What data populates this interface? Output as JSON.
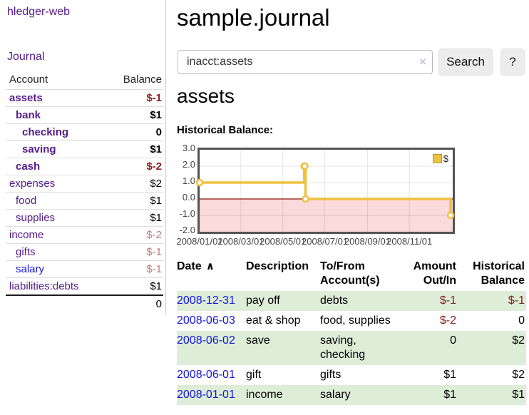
{
  "app": {
    "brand": "hledger-web",
    "nav_journal": "Journal"
  },
  "sidebar": {
    "col_account": "Account",
    "col_balance": "Balance",
    "accounts": [
      {
        "name": "assets",
        "balance": "$-1",
        "indent": 1,
        "bold": true,
        "unvisited": false
      },
      {
        "name": "bank",
        "balance": "$1",
        "indent": 2,
        "bold": true,
        "unvisited": false
      },
      {
        "name": "checking",
        "balance": "0",
        "indent": 3,
        "bold": true,
        "unvisited": false
      },
      {
        "name": "saving",
        "balance": "$1",
        "indent": 3,
        "bold": true,
        "unvisited": false
      },
      {
        "name": "cash",
        "balance": "$-2",
        "indent": 2,
        "bold": true,
        "unvisited": false
      },
      {
        "name": "expenses",
        "balance": "$2",
        "indent": 1,
        "bold": false,
        "unvisited": false
      },
      {
        "name": "food",
        "balance": "$1",
        "indent": 2,
        "bold": false,
        "unvisited": false
      },
      {
        "name": "supplies",
        "balance": "$1",
        "indent": 2,
        "bold": false,
        "unvisited": false
      },
      {
        "name": "income",
        "balance": "$-2",
        "indent": 1,
        "bold": false,
        "unvisited": false
      },
      {
        "name": "gifts",
        "balance": "$-1",
        "indent": 2,
        "bold": false,
        "unvisited": false
      },
      {
        "name": "salary",
        "balance": "$-1",
        "indent": 2,
        "bold": false,
        "unvisited": true
      },
      {
        "name": "liabilities:debts",
        "balance": "$1",
        "indent": 1,
        "bold": false,
        "unvisited": false
      }
    ],
    "total": "0"
  },
  "header": {
    "title": "sample.journal"
  },
  "search": {
    "value": "inacct:assets",
    "clear_icon": "×",
    "button_label": "Search",
    "help_label": "?"
  },
  "account_page": {
    "title": "assets",
    "chart_label": "Historical Balance:"
  },
  "chart_data": {
    "type": "line",
    "step": true,
    "title": "Historical Balance",
    "x_start": "2008-01-01",
    "x_end": "2009-01-03",
    "ylim": [
      -2,
      3
    ],
    "ytick_values": [
      3,
      2,
      1,
      0,
      -1,
      -2
    ],
    "ytick_labels": [
      "3.0",
      "2.0",
      "1.0",
      "0.0",
      "-1.0",
      "-2.0"
    ],
    "xtick_values": [
      "2008-01-01",
      "2008-03-01",
      "2008-05-01",
      "2008-07-01",
      "2008-09-01",
      "2008-11-01"
    ],
    "xtick_labels": [
      "2008/01/01",
      "2008/03/01",
      "2008/05/01",
      "2008/07/01",
      "2008/09/01",
      "2008/11/01"
    ],
    "grid": true,
    "legend_position": "top-right",
    "series": [
      {
        "name": "$",
        "color": "#edc240",
        "points": [
          {
            "x": "2008-01-01",
            "y": 1
          },
          {
            "x": "2008-06-01",
            "y": 2
          },
          {
            "x": "2008-06-02",
            "y": 2
          },
          {
            "x": "2008-06-03",
            "y": 0
          },
          {
            "x": "2008-12-31",
            "y": -1
          }
        ]
      }
    ],
    "negative_region_fill": "#fadada",
    "zero_line_color": "#8b1111",
    "gridline_color": "#e3e3e3"
  },
  "register": {
    "sort_icon": "∧",
    "headers": {
      "date": "Date",
      "description": "Description",
      "accounts": "To/From Account(s)",
      "amount": "Amount Out/In",
      "balance": "Historical Balance"
    },
    "rows": [
      {
        "date": "2008-12-31",
        "description": "pay off",
        "accounts": "debts",
        "amount": "$-1",
        "balance": "$-1"
      },
      {
        "date": "2008-06-03",
        "description": "eat & shop",
        "accounts": "food, supplies",
        "amount": "$-2",
        "balance": "0"
      },
      {
        "date": "2008-06-02",
        "description": "save",
        "accounts": "saving, checking",
        "amount": "0",
        "balance": "$2"
      },
      {
        "date": "2008-06-01",
        "description": "gift",
        "accounts": "gifts",
        "amount": "$1",
        "balance": "$2"
      },
      {
        "date": "2008-01-01",
        "description": "income",
        "accounts": "salary",
        "amount": "$1",
        "balance": "$1"
      }
    ]
  },
  "colors": {
    "link_purple": "#551a8b",
    "link_blue": "#1414e0",
    "negative_strong": "#8b1a1a",
    "negative_faded": "#bb7b7b",
    "row_stripe_green": "#ddedd8",
    "series_yellow": "#edc240",
    "chart_negative_fill": "#fadada",
    "zero_line": "#8b1111"
  }
}
